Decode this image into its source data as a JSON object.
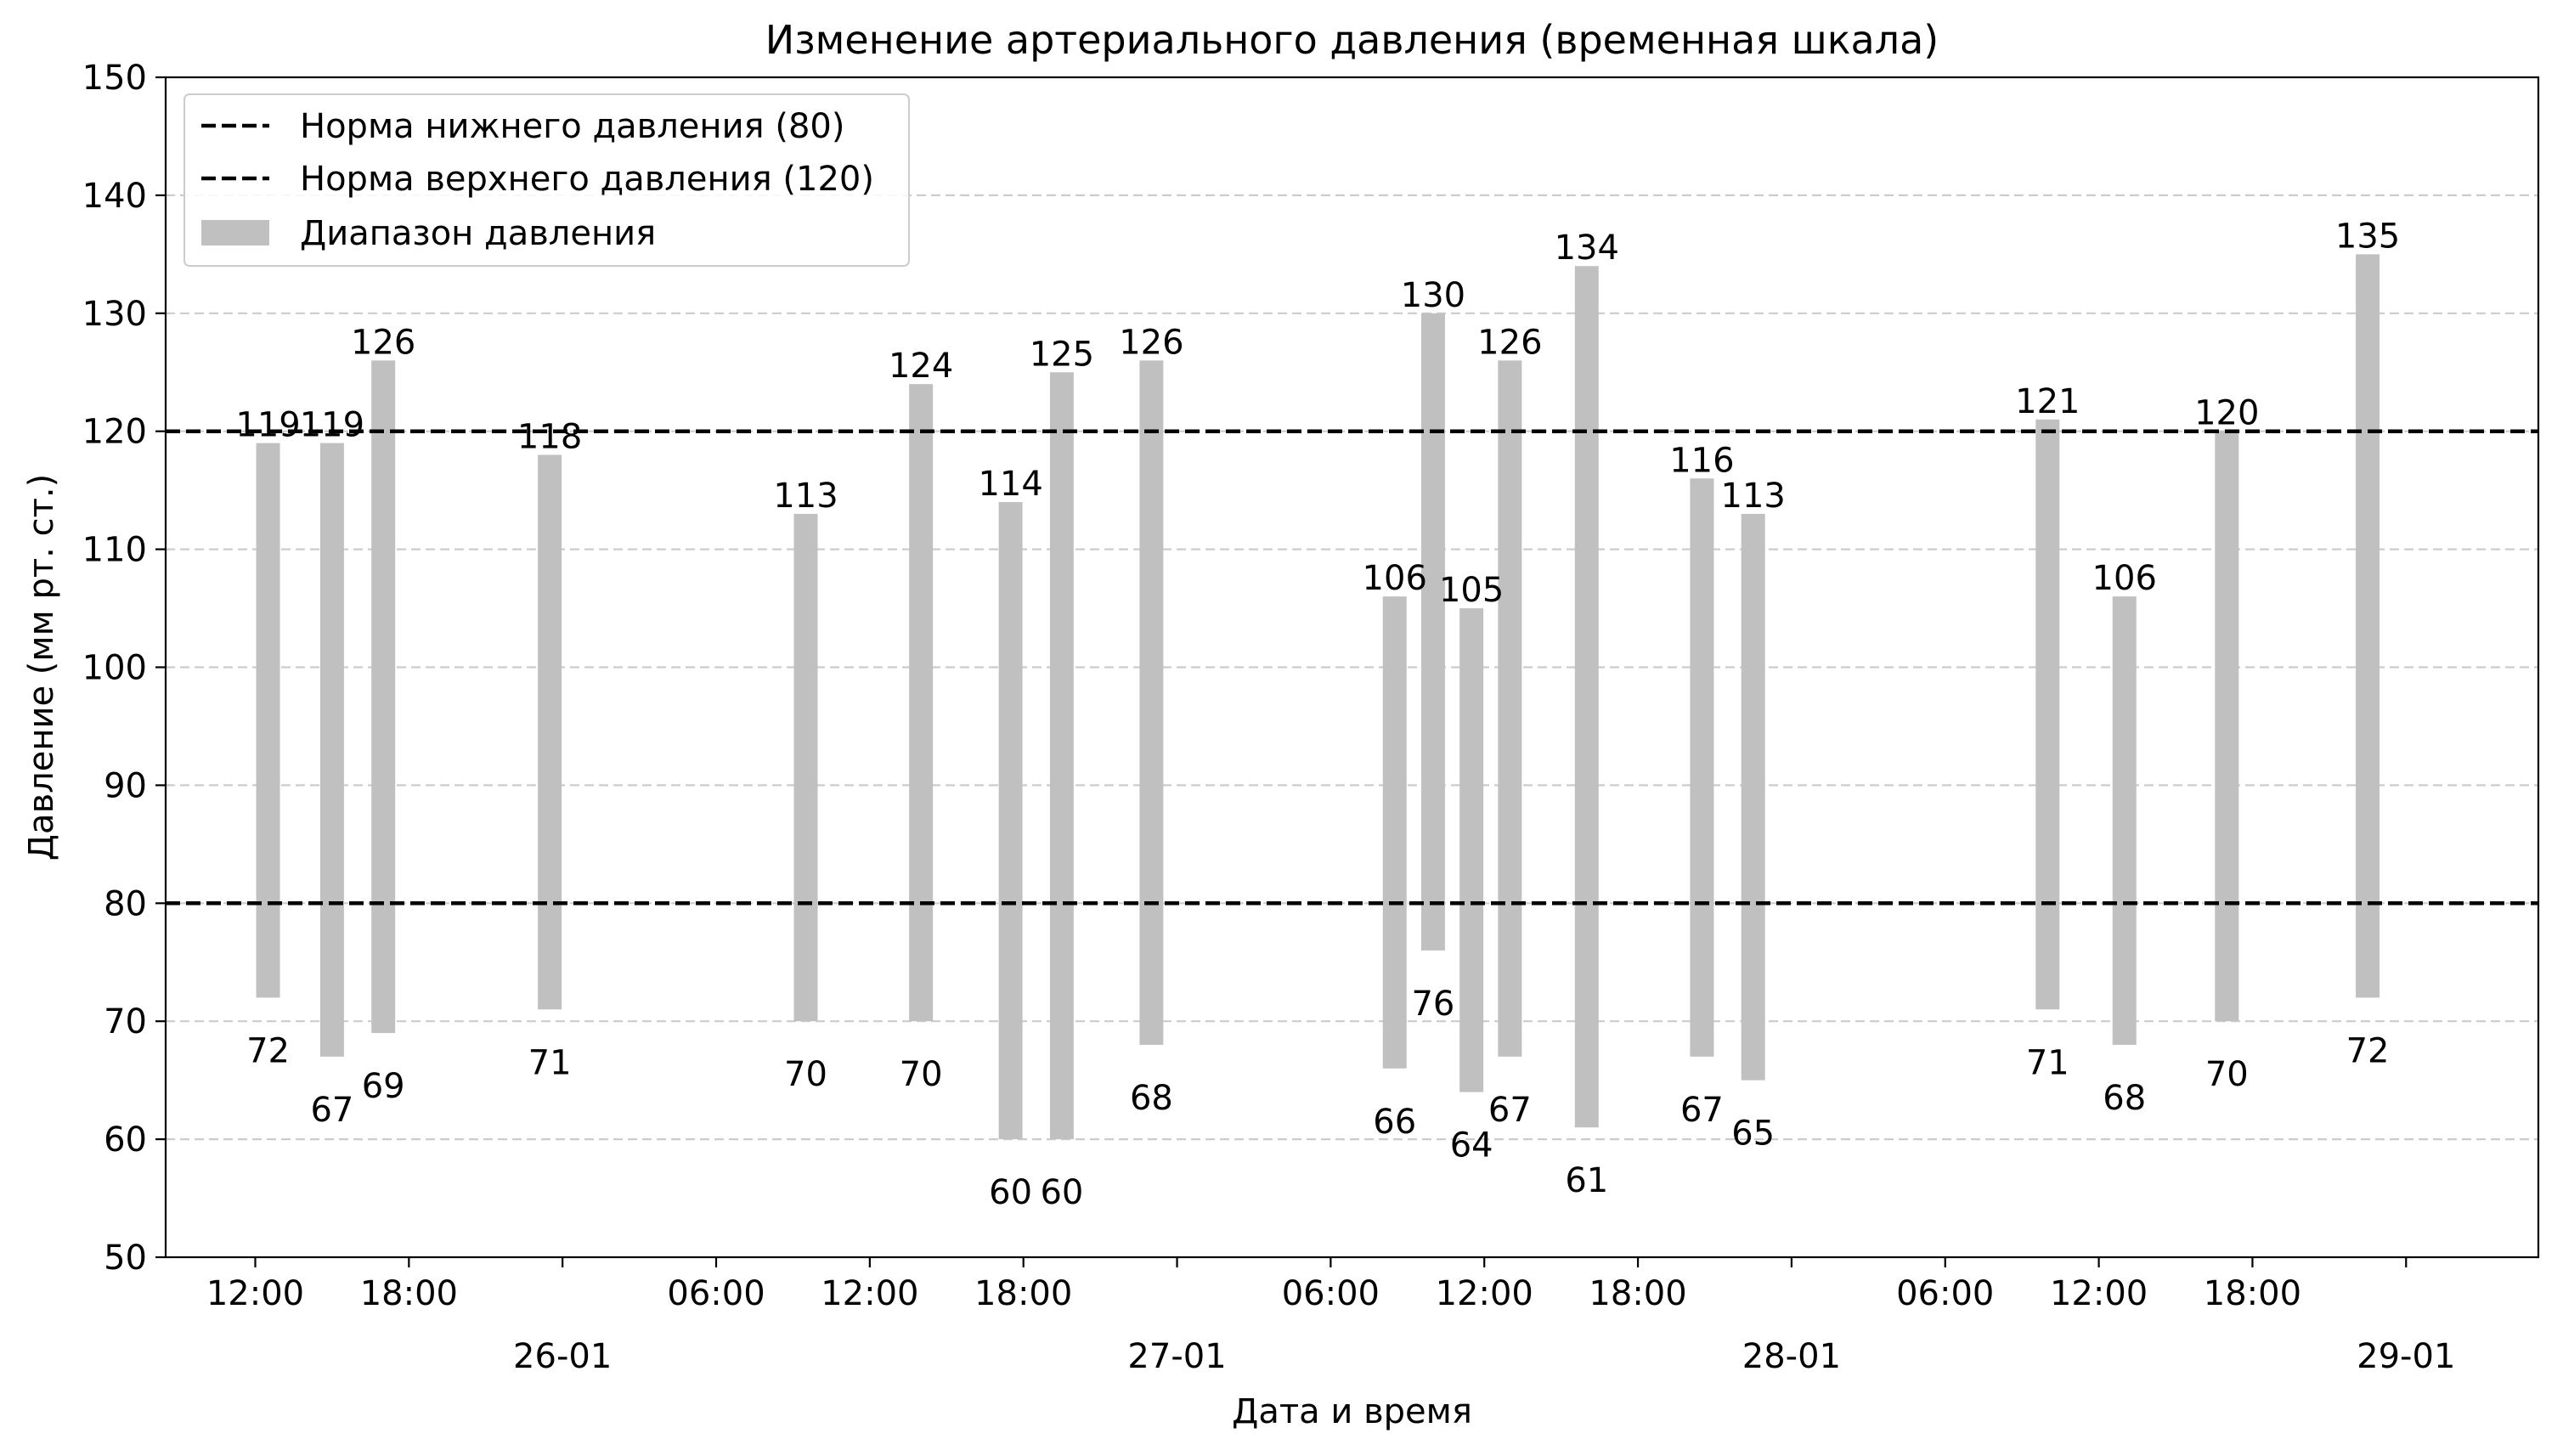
{
  "chart_data": {
    "type": "bar",
    "subtype": "floating-range",
    "title": "Изменение артериального давления (временная шкала)",
    "xlabel": "Дата и время",
    "ylabel": "Давление (мм рт. ст.)",
    "ylim": [
      50,
      150
    ],
    "yticks": [
      50,
      60,
      70,
      80,
      90,
      100,
      110,
      120,
      130,
      140,
      150
    ],
    "xlim": [
      "2025-01-25 08:30",
      "2025-01-29 05:10"
    ],
    "x_minor_ticks": [
      {
        "at": "2025-01-25 12:00",
        "label": "12:00"
      },
      {
        "at": "2025-01-25 18:00",
        "label": "18:00"
      },
      {
        "at": "2025-01-26 06:00",
        "label": "06:00"
      },
      {
        "at": "2025-01-26 12:00",
        "label": "12:00"
      },
      {
        "at": "2025-01-26 18:00",
        "label": "18:00"
      },
      {
        "at": "2025-01-27 06:00",
        "label": "06:00"
      },
      {
        "at": "2025-01-27 12:00",
        "label": "12:00"
      },
      {
        "at": "2025-01-27 18:00",
        "label": "18:00"
      },
      {
        "at": "2025-01-28 06:00",
        "label": "06:00"
      },
      {
        "at": "2025-01-28 12:00",
        "label": "12:00"
      },
      {
        "at": "2025-01-28 18:00",
        "label": "18:00"
      }
    ],
    "x_major_ticks": [
      {
        "at": "2025-01-26 00:00",
        "label": "26-01"
      },
      {
        "at": "2025-01-27 00:00",
        "label": "27-01"
      },
      {
        "at": "2025-01-28 00:00",
        "label": "28-01"
      },
      {
        "at": "2025-01-29 00:00",
        "label": "29-01"
      }
    ],
    "grid": "horizontal dashed",
    "legend_position": "top-left",
    "legend": [
      {
        "label": "Норма нижнего давления (80)",
        "kind": "dashed-line"
      },
      {
        "label": "Норма верхнего давления (120)",
        "kind": "dashed-line"
      },
      {
        "label": "Диапазон давления",
        "kind": "patch"
      }
    ],
    "reference_lines": [
      80,
      120
    ],
    "bar_color": "#c0c0c0",
    "line_color": "#000000",
    "grid_color": "#cccccc",
    "bars": [
      {
        "t": "2025-01-25 12:30",
        "low": 72,
        "high": 119
      },
      {
        "t": "2025-01-25 15:00",
        "low": 67,
        "high": 119
      },
      {
        "t": "2025-01-25 17:00",
        "low": 69,
        "high": 126
      },
      {
        "t": "2025-01-25 23:30",
        "low": 71,
        "high": 118
      },
      {
        "t": "2025-01-26 09:30",
        "low": 70,
        "high": 113
      },
      {
        "t": "2025-01-26 14:00",
        "low": 70,
        "high": 124
      },
      {
        "t": "2025-01-26 17:30",
        "low": 60,
        "high": 114
      },
      {
        "t": "2025-01-26 19:30",
        "low": 60,
        "high": 125
      },
      {
        "t": "2025-01-26 23:00",
        "low": 68,
        "high": 126
      },
      {
        "t": "2025-01-27 08:30",
        "low": 66,
        "high": 106
      },
      {
        "t": "2025-01-27 10:00",
        "low": 76,
        "high": 130
      },
      {
        "t": "2025-01-27 11:30",
        "low": 64,
        "high": 105
      },
      {
        "t": "2025-01-27 13:00",
        "low": 67,
        "high": 126
      },
      {
        "t": "2025-01-27 16:00",
        "low": 61,
        "high": 134
      },
      {
        "t": "2025-01-27 20:30",
        "low": 67,
        "high": 116
      },
      {
        "t": "2025-01-27 22:30",
        "low": 65,
        "high": 113
      },
      {
        "t": "2025-01-28 10:00",
        "low": 71,
        "high": 121
      },
      {
        "t": "2025-01-28 13:00",
        "low": 68,
        "high": 106
      },
      {
        "t": "2025-01-28 17:00",
        "low": 70,
        "high": 120
      },
      {
        "t": "2025-01-28 22:30",
        "low": 72,
        "high": 135
      }
    ]
  }
}
